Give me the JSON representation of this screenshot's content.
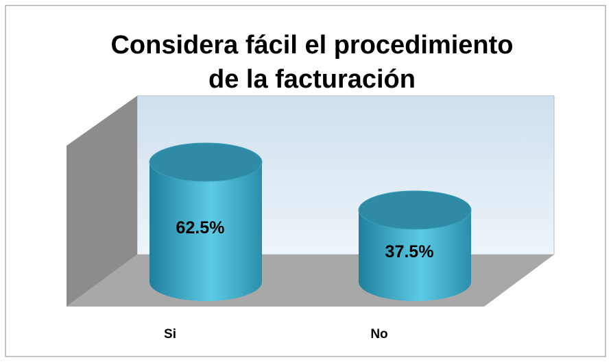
{
  "chart_data": {
    "type": "cylinder",
    "title": [
      "Considera fácil el procedimiento",
      "de la facturación"
    ],
    "categories": [
      "Si",
      "No"
    ],
    "values": [
      62.5,
      37.5
    ],
    "value_labels": [
      "62.5%",
      "37.5%"
    ],
    "color": "#3fb0cf"
  }
}
